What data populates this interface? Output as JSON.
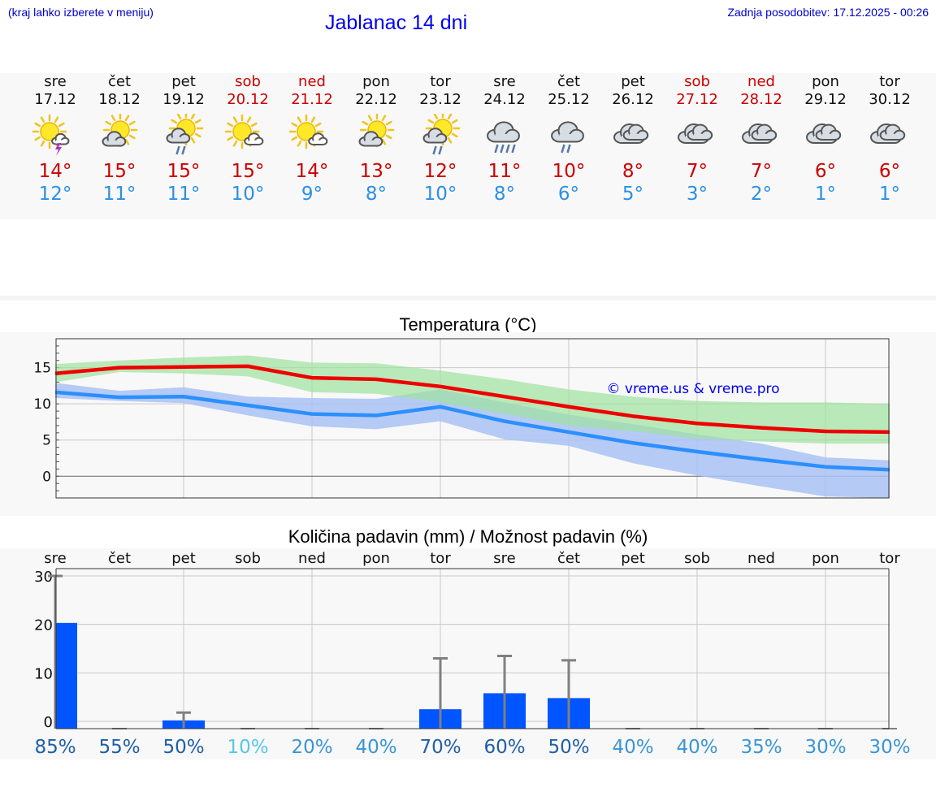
{
  "header": {
    "hint": "(kraj lahko izberete v meniju)",
    "title": "Jablanac 14 dni",
    "updated": "Zadnja posodobitev: 17.12.2025 - 00:26"
  },
  "days": [
    {
      "name": "sre",
      "date": "17.12",
      "weekend": false,
      "icon": "sun-cloud-thunder",
      "tmax": "14°",
      "tmin": "12°"
    },
    {
      "name": "čet",
      "date": "18.12",
      "weekend": false,
      "icon": "sun-cloud",
      "tmax": "15°",
      "tmin": "11°"
    },
    {
      "name": "pet",
      "date": "19.12",
      "weekend": false,
      "icon": "sun-cloud-rain-light",
      "tmax": "15°",
      "tmin": "11°"
    },
    {
      "name": "sob",
      "date": "20.12",
      "weekend": true,
      "icon": "sun-small-cloud",
      "tmax": "15°",
      "tmin": "10°"
    },
    {
      "name": "ned",
      "date": "21.12",
      "weekend": true,
      "icon": "sun-small-cloud",
      "tmax": "14°",
      "tmin": "9°"
    },
    {
      "name": "pon",
      "date": "22.12",
      "weekend": false,
      "icon": "sun-cloud",
      "tmax": "13°",
      "tmin": "8°"
    },
    {
      "name": "tor",
      "date": "23.12",
      "weekend": false,
      "icon": "sun-cloud-rain-light",
      "tmax": "12°",
      "tmin": "10°"
    },
    {
      "name": "sre",
      "date": "24.12",
      "weekend": false,
      "icon": "cloud-rain-heavy",
      "tmax": "11°",
      "tmin": "8°"
    },
    {
      "name": "čet",
      "date": "25.12",
      "weekend": false,
      "icon": "cloud-rain-light",
      "tmax": "10°",
      "tmin": "6°"
    },
    {
      "name": "pet",
      "date": "26.12",
      "weekend": false,
      "icon": "overcast",
      "tmax": "8°",
      "tmin": "5°"
    },
    {
      "name": "sob",
      "date": "27.12",
      "weekend": true,
      "icon": "overcast",
      "tmax": "7°",
      "tmin": "3°"
    },
    {
      "name": "ned",
      "date": "28.12",
      "weekend": true,
      "icon": "overcast",
      "tmax": "7°",
      "tmin": "2°"
    },
    {
      "name": "pon",
      "date": "29.12",
      "weekend": false,
      "icon": "overcast",
      "tmax": "6°",
      "tmin": "1°"
    },
    {
      "name": "tor",
      "date": "30.12",
      "weekend": false,
      "icon": "overcast",
      "tmax": "6°",
      "tmin": "1°"
    }
  ],
  "colors": {
    "max_line": "#ee0000",
    "min_line": "#2b8fff",
    "max_band": "#9ee39e",
    "min_band": "#a9c2f5",
    "bar": "#0055ff",
    "error_bar": "#808080",
    "title_blue": "#0000ee",
    "weekend": "#cc0000"
  },
  "chart_data": [
    {
      "type": "line",
      "title": "Temperatura (°C)",
      "watermark": "© vreme.us & vreme.pro",
      "ylim": [
        -3,
        19
      ],
      "yticks": [
        0,
        5,
        10,
        15
      ],
      "x": [
        0,
        1,
        2,
        3,
        4,
        5,
        6,
        7,
        8,
        9,
        10,
        11,
        12,
        13
      ],
      "series": [
        {
          "name": "max",
          "values": [
            14.2,
            15.0,
            15.1,
            15.2,
            13.6,
            13.4,
            12.4,
            11.0,
            9.6,
            8.3,
            7.3,
            6.7,
            6.2,
            6.1
          ],
          "band_low": [
            13.0,
            14.4,
            14.2,
            13.8,
            11.6,
            11.4,
            10.2,
            8.6,
            7.0,
            6.2,
            5.2,
            4.8,
            4.5,
            4.5
          ],
          "band_high": [
            15.5,
            16.0,
            16.4,
            16.7,
            15.7,
            15.6,
            14.6,
            13.4,
            12.0,
            11.0,
            10.4,
            10.2,
            10.2,
            10.0
          ]
        },
        {
          "name": "min",
          "values": [
            11.6,
            10.9,
            11.0,
            9.8,
            8.6,
            8.4,
            9.6,
            7.6,
            6.1,
            4.6,
            3.4,
            2.3,
            1.3,
            0.9
          ],
          "band_low": [
            10.8,
            10.4,
            10.1,
            8.4,
            6.9,
            6.5,
            7.6,
            5.1,
            4.2,
            1.8,
            0.1,
            -1.4,
            -2.8,
            -3.0
          ],
          "band_high": [
            12.9,
            11.8,
            12.3,
            11.0,
            10.8,
            10.7,
            12.0,
            10.2,
            8.5,
            7.2,
            5.8,
            4.5,
            2.6,
            2.2
          ]
        }
      ]
    },
    {
      "type": "bar",
      "title": "Količina padavin (mm) / Možnost padavin (%)",
      "categories": [
        "sre",
        "čet",
        "pet",
        "sob",
        "ned",
        "pon",
        "tor",
        "sre",
        "čet",
        "pet",
        "sob",
        "ned",
        "pon",
        "tor"
      ],
      "ylim": [
        -1.5,
        31.5
      ],
      "yticks": [
        0,
        10,
        20,
        30
      ],
      "values": [
        20.3,
        0,
        0.2,
        0,
        0,
        0,
        2.5,
        5.8,
        4.8,
        0,
        0,
        0,
        0,
        0
      ],
      "error_high": [
        30,
        0,
        1.8,
        0,
        0,
        0,
        13,
        13.5,
        12.6,
        0,
        0,
        0,
        0,
        0
      ],
      "probability": [
        "85%",
        "55%",
        "50%",
        "10%",
        "20%",
        "40%",
        "70%",
        "60%",
        "50%",
        "40%",
        "40%",
        "35%",
        "30%",
        "30%"
      ],
      "probability_colors": [
        "#1f5fa8",
        "#1f5fa8",
        "#1f5fa8",
        "#55c8e6",
        "#3a95d6",
        "#3a95d6",
        "#1f5fa8",
        "#1f5fa8",
        "#1f5fa8",
        "#3a95d6",
        "#3a95d6",
        "#3a95d6",
        "#3a95d6",
        "#3a95d6"
      ]
    }
  ]
}
